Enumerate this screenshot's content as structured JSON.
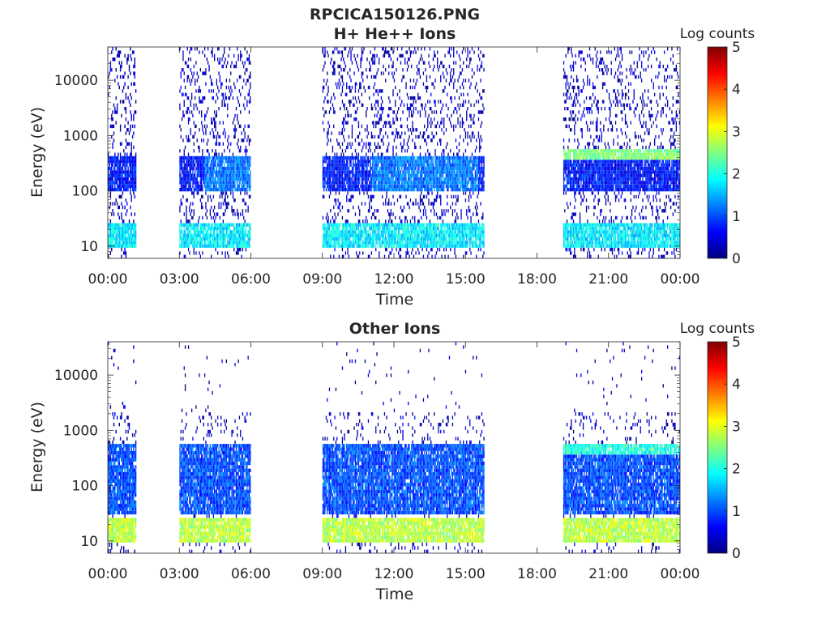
{
  "figure": {
    "title_lines": [
      "RPCICA150126.PNG"
    ]
  },
  "colorbar": {
    "label": "Log counts",
    "range": [
      0,
      5
    ],
    "ticks": [
      "0",
      "1",
      "2",
      "3",
      "4",
      "5"
    ],
    "colormap": "jet",
    "colors": [
      "#00007f",
      "#0000ff",
      "#007fff",
      "#00ffff",
      "#7fff7f",
      "#ffff00",
      "#ff7f00",
      "#ff0000",
      "#7f0000"
    ]
  },
  "chart_data": [
    {
      "type": "heatmap",
      "title": "H+ He++ Ions",
      "xlabel": "Time",
      "ylabel": "Energy (eV)",
      "x_ticks": [
        "00:00",
        "03:00",
        "06:00",
        "09:00",
        "12:00",
        "15:00",
        "18:00",
        "21:00",
        "00:00"
      ],
      "x_range_hours": [
        0,
        24
      ],
      "y_scale": "log",
      "y_ticks": [
        "10",
        "100",
        "1000",
        "10000"
      ],
      "y_range_eV": [
        6,
        40000
      ],
      "data_intervals_hours": [
        [
          0.0,
          1.2
        ],
        [
          3.0,
          6.0
        ],
        [
          9.0,
          15.8
        ],
        [
          19.1,
          24.0
        ]
      ],
      "notable_bands": [
        {
          "energy_eV": [
            9,
            25
          ],
          "log_counts": 1.8,
          "note": "low-energy band"
        },
        {
          "energy_eV": [
            100,
            400
          ],
          "log_counts": 1.2,
          "note": "enhanced flux 04:00-06:00 and 11:00-15:00"
        },
        {
          "energy_eV": [
            350,
            600
          ],
          "log_counts": 2.5,
          "note": "band after 19:00"
        }
      ]
    },
    {
      "type": "heatmap",
      "title": "Other Ions",
      "xlabel": "Time",
      "ylabel": "Energy (eV)",
      "x_ticks": [
        "00:00",
        "03:00",
        "06:00",
        "09:00",
        "12:00",
        "15:00",
        "18:00",
        "21:00",
        "00:00"
      ],
      "x_range_hours": [
        0,
        24
      ],
      "y_scale": "log",
      "y_ticks": [
        "10",
        "100",
        "1000",
        "10000"
      ],
      "y_range_eV": [
        6,
        40000
      ],
      "data_intervals_hours": [
        [
          0.0,
          1.2
        ],
        [
          3.0,
          6.0
        ],
        [
          9.0,
          15.8
        ],
        [
          19.1,
          24.0
        ]
      ],
      "notable_bands": [
        {
          "energy_eV": [
            9,
            25
          ],
          "log_counts": 2.8,
          "note": "strong low-energy band"
        },
        {
          "energy_eV": [
            30,
            600
          ],
          "log_counts": 1.0,
          "note": "broad flux"
        },
        {
          "energy_eV": [
            350,
            600
          ],
          "log_counts": 2.0,
          "note": "band after 19:00"
        }
      ]
    }
  ]
}
